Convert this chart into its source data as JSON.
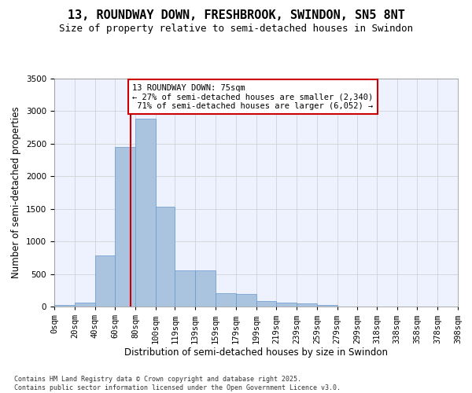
{
  "title_line1": "13, ROUNDWAY DOWN, FRESHBROOK, SWINDON, SN5 8NT",
  "title_line2": "Size of property relative to semi-detached houses in Swindon",
  "xlabel": "Distribution of semi-detached houses by size in Swindon",
  "ylabel": "Number of semi-detached properties",
  "footnote": "Contains HM Land Registry data © Crown copyright and database right 2025.\nContains public sector information licensed under the Open Government Licence v3.0.",
  "bin_labels": [
    "0sqm",
    "20sqm",
    "40sqm",
    "60sqm",
    "80sqm",
    "100sqm",
    "119sqm",
    "139sqm",
    "159sqm",
    "179sqm",
    "199sqm",
    "219sqm",
    "239sqm",
    "259sqm",
    "279sqm",
    "299sqm",
    "318sqm",
    "338sqm",
    "358sqm",
    "378sqm",
    "398sqm"
  ],
  "bin_edges": [
    0,
    20,
    40,
    60,
    80,
    100,
    119,
    139,
    159,
    179,
    199,
    219,
    239,
    259,
    279,
    299,
    318,
    338,
    358,
    378,
    398
  ],
  "bar_heights": [
    25,
    60,
    790,
    2450,
    2890,
    1530,
    555,
    555,
    200,
    195,
    80,
    55,
    45,
    30,
    5,
    5,
    5,
    5,
    5,
    0
  ],
  "bar_color": "#aac4e0",
  "bar_edge_color": "#6699cc",
  "property_size": 75,
  "property_size_label": "13 ROUNDWAY DOWN: 75sqm",
  "pct_smaller": 27,
  "pct_smaller_count": "2,340",
  "pct_larger": 71,
  "pct_larger_count": "6,052",
  "vline_color": "#cc0000",
  "annotation_box_color": "#cc0000",
  "ylim": [
    0,
    3500
  ],
  "yticks": [
    0,
    500,
    1000,
    1500,
    2000,
    2500,
    3000,
    3500
  ],
  "background_color": "#eef2ff",
  "grid_color": "#cccccc",
  "title_fontsize": 11,
  "subtitle_fontsize": 9,
  "axis_label_fontsize": 8.5,
  "tick_fontsize": 7.5,
  "annotation_fontsize": 7.5,
  "footnote_fontsize": 6.0
}
